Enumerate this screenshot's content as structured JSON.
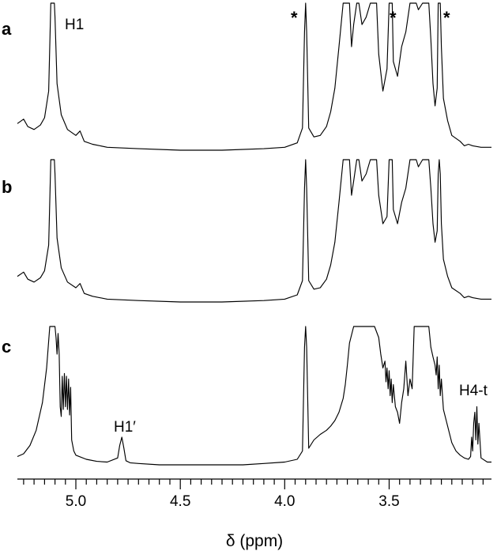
{
  "chart_data": {
    "type": "line",
    "title": "",
    "xlabel": "δ (ppm)",
    "ylabel": "",
    "xlim": [
      5.28,
      3.01
    ],
    "x_reversed": true,
    "grid": false,
    "x_ticks": [
      5.0,
      4.5,
      4.0,
      3.5
    ],
    "x_tick_labels": [
      "5.0",
      "4.5",
      "4.0",
      "3.5"
    ],
    "series": [
      {
        "name": "a",
        "x": [
          5.28,
          5.25,
          5.23,
          5.2,
          5.17,
          5.15,
          5.13,
          5.12,
          5.113,
          5.107,
          5.103,
          5.1,
          5.09,
          5.07,
          5.04,
          5.0,
          4.98,
          4.96,
          4.92,
          4.85,
          4.7,
          4.5,
          4.3,
          4.1,
          4.0,
          3.94,
          3.915,
          3.905,
          3.9,
          3.895,
          3.885,
          3.86,
          3.83,
          3.8,
          3.78,
          3.76,
          3.74,
          3.72,
          3.71,
          3.7,
          3.69,
          3.68,
          3.67,
          3.655,
          3.65,
          3.645,
          3.63,
          3.61,
          3.59,
          3.575,
          3.57,
          3.56,
          3.55,
          3.53,
          3.51,
          3.5,
          3.495,
          3.49,
          3.485,
          3.48,
          3.46,
          3.44,
          3.42,
          3.4,
          3.39,
          3.385,
          3.38,
          3.37,
          3.36,
          3.34,
          3.32,
          3.31,
          3.3,
          3.29,
          3.28,
          3.27,
          3.265,
          3.26,
          3.255,
          3.25,
          3.24,
          3.22,
          3.2,
          3.16,
          3.14,
          3.12,
          3.1,
          3.06,
          3.01
        ],
        "y": [
          0.18,
          0.21,
          0.16,
          0.14,
          0.17,
          0.22,
          0.4,
          1.0,
          1.0,
          1.0,
          1.0,
          0.9,
          0.45,
          0.24,
          0.14,
          0.1,
          0.13,
          0.06,
          0.04,
          0.02,
          0.01,
          0.0,
          0.0,
          0.01,
          0.02,
          0.05,
          0.15,
          0.8,
          1.0,
          0.8,
          0.15,
          0.09,
          0.1,
          0.16,
          0.26,
          0.42,
          0.7,
          1.0,
          1.0,
          1.0,
          1.0,
          0.7,
          0.85,
          1.0,
          1.0,
          1.0,
          0.85,
          0.9,
          1.0,
          1.0,
          1.0,
          1.0,
          0.65,
          0.4,
          0.55,
          1.0,
          1.0,
          1.0,
          1.0,
          0.6,
          0.5,
          0.7,
          0.8,
          1.0,
          1.0,
          1.0,
          1.0,
          1.0,
          0.95,
          1.0,
          1.0,
          1.0,
          0.75,
          0.45,
          0.3,
          0.42,
          1.0,
          1.0,
          1.0,
          0.7,
          0.35,
          0.2,
          0.1,
          0.06,
          0.03,
          0.04,
          0.03,
          0.02,
          0.02
        ]
      },
      {
        "name": "b",
        "x": [
          5.28,
          5.25,
          5.23,
          5.2,
          5.17,
          5.15,
          5.13,
          5.12,
          5.113,
          5.107,
          5.103,
          5.1,
          5.09,
          5.07,
          5.04,
          5.0,
          4.98,
          4.96,
          4.92,
          4.85,
          4.7,
          4.5,
          4.3,
          4.1,
          4.0,
          3.94,
          3.915,
          3.905,
          3.9,
          3.895,
          3.885,
          3.86,
          3.83,
          3.8,
          3.78,
          3.76,
          3.74,
          3.72,
          3.71,
          3.7,
          3.69,
          3.68,
          3.67,
          3.655,
          3.65,
          3.645,
          3.63,
          3.61,
          3.59,
          3.575,
          3.57,
          3.56,
          3.55,
          3.53,
          3.51,
          3.5,
          3.495,
          3.49,
          3.485,
          3.48,
          3.46,
          3.44,
          3.42,
          3.4,
          3.39,
          3.385,
          3.38,
          3.37,
          3.36,
          3.34,
          3.32,
          3.31,
          3.3,
          3.29,
          3.28,
          3.27,
          3.265,
          3.26,
          3.255,
          3.25,
          3.24,
          3.22,
          3.2,
          3.16,
          3.14,
          3.12,
          3.1,
          3.06,
          3.01
        ],
        "y": [
          0.18,
          0.21,
          0.16,
          0.14,
          0.17,
          0.22,
          0.4,
          1.0,
          1.0,
          1.0,
          1.0,
          0.9,
          0.45,
          0.24,
          0.14,
          0.1,
          0.13,
          0.06,
          0.04,
          0.02,
          0.01,
          0.0,
          0.0,
          0.01,
          0.02,
          0.05,
          0.15,
          0.8,
          1.0,
          0.8,
          0.15,
          0.09,
          0.1,
          0.16,
          0.26,
          0.42,
          0.7,
          1.0,
          1.0,
          1.0,
          1.0,
          0.75,
          0.85,
          1.0,
          1.0,
          1.0,
          0.85,
          0.9,
          1.0,
          1.0,
          1.0,
          1.0,
          0.75,
          0.55,
          0.6,
          1.0,
          1.0,
          1.0,
          1.0,
          0.65,
          0.55,
          0.7,
          0.8,
          1.0,
          1.0,
          1.0,
          1.0,
          1.0,
          0.95,
          1.0,
          1.0,
          1.0,
          0.8,
          0.55,
          0.42,
          0.5,
          0.9,
          1.0,
          0.9,
          0.55,
          0.3,
          0.18,
          0.1,
          0.06,
          0.03,
          0.04,
          0.03,
          0.02,
          0.02
        ]
      },
      {
        "name": "c",
        "x": [
          5.28,
          5.25,
          5.22,
          5.19,
          5.16,
          5.14,
          5.125,
          5.12,
          5.113,
          5.107,
          5.1,
          5.095,
          5.09,
          5.085,
          5.08,
          5.075,
          5.07,
          5.065,
          5.06,
          5.055,
          5.05,
          5.045,
          5.04,
          5.035,
          5.03,
          5.025,
          5.02,
          5.01,
          5.0,
          4.95,
          4.9,
          4.85,
          4.8,
          4.79,
          4.78,
          4.77,
          4.76,
          4.74,
          4.7,
          4.6,
          4.5,
          4.4,
          4.3,
          4.2,
          4.1,
          4.0,
          3.94,
          3.915,
          3.905,
          3.9,
          3.895,
          3.885,
          3.86,
          3.83,
          3.8,
          3.78,
          3.76,
          3.74,
          3.72,
          3.71,
          3.7,
          3.69,
          3.67,
          3.65,
          3.63,
          3.61,
          3.59,
          3.57,
          3.55,
          3.54,
          3.53,
          3.52,
          3.515,
          3.51,
          3.505,
          3.5,
          3.495,
          3.49,
          3.485,
          3.48,
          3.47,
          3.46,
          3.45,
          3.44,
          3.43,
          3.42,
          3.41,
          3.4,
          3.39,
          3.38,
          3.37,
          3.36,
          3.34,
          3.32,
          3.31,
          3.3,
          3.29,
          3.28,
          3.275,
          3.27,
          3.265,
          3.26,
          3.255,
          3.25,
          3.24,
          3.22,
          3.2,
          3.18,
          3.16,
          3.14,
          3.12,
          3.11,
          3.105,
          3.1,
          3.095,
          3.09,
          3.085,
          3.08,
          3.075,
          3.07,
          3.06,
          3.03,
          3.01
        ],
        "y": [
          0.06,
          0.08,
          0.14,
          0.25,
          0.45,
          0.7,
          1.0,
          1.0,
          1.0,
          1.0,
          1.0,
          0.92,
          0.8,
          0.95,
          0.8,
          0.42,
          0.35,
          0.64,
          0.4,
          0.66,
          0.42,
          0.64,
          0.4,
          0.62,
          0.36,
          0.56,
          0.18,
          0.1,
          0.07,
          0.04,
          0.025,
          0.02,
          0.05,
          0.14,
          0.2,
          0.12,
          0.03,
          0.015,
          0.01,
          0.0,
          0.0,
          0.0,
          0.0,
          0.0,
          0.01,
          0.02,
          0.04,
          0.1,
          0.85,
          1.0,
          0.85,
          0.12,
          0.18,
          0.22,
          0.25,
          0.28,
          0.32,
          0.38,
          0.48,
          0.58,
          0.72,
          0.88,
          1.0,
          1.0,
          1.0,
          1.0,
          1.0,
          1.0,
          0.92,
          0.8,
          0.7,
          0.75,
          0.6,
          0.7,
          0.55,
          0.68,
          0.5,
          0.62,
          0.45,
          0.58,
          0.42,
          0.38,
          0.3,
          0.45,
          0.55,
          0.75,
          0.5,
          0.62,
          0.55,
          1.0,
          1.0,
          1.0,
          1.0,
          1.0,
          1.0,
          0.85,
          0.78,
          0.72,
          0.65,
          0.78,
          0.55,
          0.72,
          0.5,
          0.62,
          0.4,
          0.28,
          0.16,
          0.1,
          0.07,
          0.05,
          0.04,
          0.06,
          0.2,
          0.1,
          0.3,
          0.38,
          0.18,
          0.42,
          0.15,
          0.3,
          0.05,
          0.02,
          0.02
        ]
      }
    ],
    "annotations": [
      {
        "text": "H1",
        "x": 5.05,
        "panel": "a"
      },
      {
        "text": "*",
        "x": 3.92,
        "panel": "a"
      },
      {
        "text": "*",
        "x": 3.46,
        "panel": "a"
      },
      {
        "text": "*",
        "x": 3.24,
        "panel": "a"
      },
      {
        "text": "H1′",
        "x": 4.79,
        "panel": "c"
      },
      {
        "text": "H4-t",
        "x": 3.1,
        "panel": "c"
      }
    ]
  }
}
